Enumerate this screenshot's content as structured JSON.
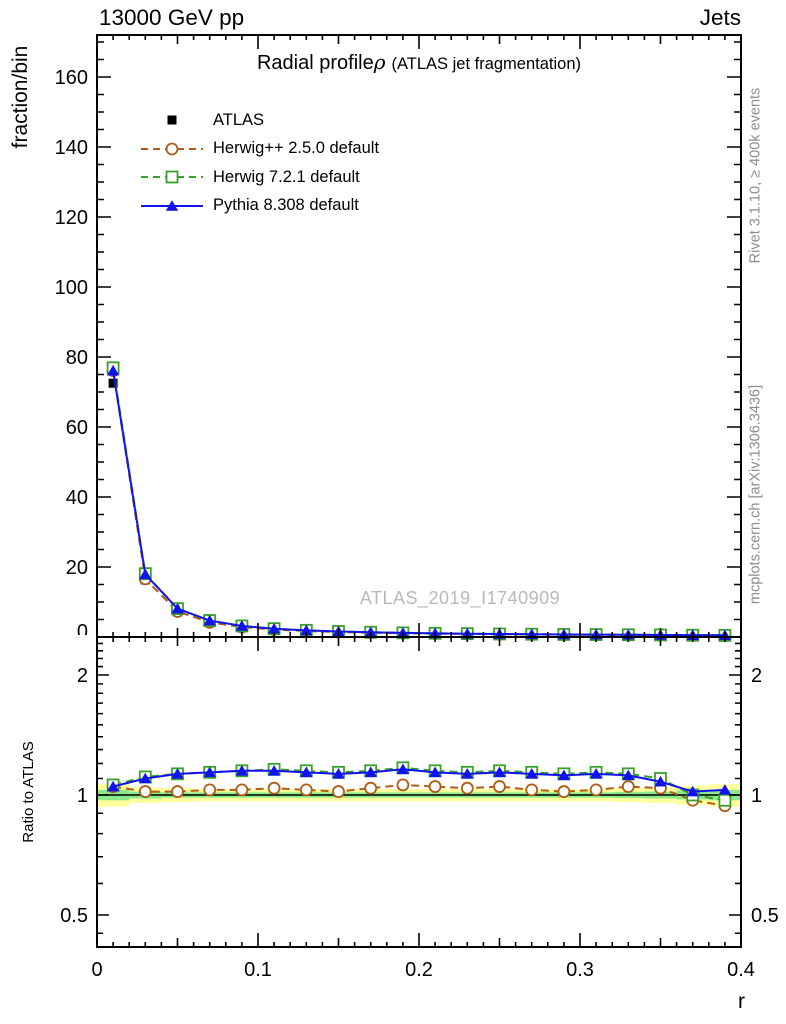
{
  "header": {
    "left": "13000 GeV pp",
    "right": "Jets"
  },
  "title": {
    "main": "Radial profile",
    "symbol": "ρ",
    "suffix": "(ATLAS jet fragmentation)"
  },
  "watermark": "ATLAS_2019_I1740909",
  "side_captions": {
    "rivet": "Rivet 3.1.10, ≥ 400k events",
    "mcplots": "mcplots.cern.ch [arXiv:1306.3436]"
  },
  "colors": {
    "band_yellow": "#ffff9e",
    "band_green": "#8be88b",
    "caption_gray": "#8c8c8c",
    "watermark_gray": "#b9b9b9"
  },
  "chart_data": {
    "type": "line",
    "title": "Radial profile ρ (ATLAS jet fragmentation)",
    "xlabel": "r",
    "xlim": [
      0,
      0.4
    ],
    "xticks": [
      0,
      0.1,
      0.2,
      0.3,
      0.4
    ],
    "x_tick_labels": [
      "0",
      "0.1",
      "0.2",
      "0.3",
      "0.4"
    ],
    "bin_width": 0.02,
    "x": [
      0.01,
      0.03,
      0.05,
      0.07,
      0.09,
      0.11,
      0.13,
      0.15,
      0.17,
      0.19,
      0.21,
      0.23,
      0.25,
      0.27,
      0.29,
      0.31,
      0.33,
      0.35,
      0.37,
      0.39
    ],
    "top_panel": {
      "ylabel": "fraction/bin",
      "yscale": "linear",
      "ylim": [
        0,
        172
      ],
      "yticks": [
        0,
        20,
        40,
        60,
        80,
        100,
        120,
        140,
        160
      ],
      "y_tick_labels": [
        "0",
        "20",
        "40",
        "60",
        "80",
        "100",
        "120",
        "140",
        "160"
      ]
    },
    "ratio_panel": {
      "ylabel": "Ratio to ATLAS",
      "yscale": "log",
      "ylim": [
        0.42,
        2.49
      ],
      "yticks": [
        0.5,
        1,
        2
      ],
      "y_tick_labels": [
        "0.5",
        "1",
        "2"
      ],
      "band": {
        "center": 1.0,
        "yellow_halfwidth": [
          0.065,
          0.045,
          0.04,
          0.035,
          0.035,
          0.035,
          0.035,
          0.035,
          0.035,
          0.035,
          0.035,
          0.035,
          0.035,
          0.035,
          0.035,
          0.035,
          0.04,
          0.045,
          0.055,
          0.065
        ],
        "green_halfwidth": [
          0.03,
          0.02,
          0.015,
          0.015,
          0.015,
          0.015,
          0.015,
          0.015,
          0.015,
          0.015,
          0.015,
          0.015,
          0.015,
          0.015,
          0.015,
          0.015,
          0.018,
          0.02,
          0.025,
          0.03
        ]
      }
    },
    "series": [
      {
        "name": "ATLAS",
        "color": "#000000",
        "marker": "filled-square",
        "line": "none",
        "values": [
          72.5,
          16.3,
          7.2,
          4.1,
          2.75,
          2.05,
          1.65,
          1.38,
          1.18,
          1.02,
          0.92,
          0.83,
          0.76,
          0.7,
          0.65,
          0.61,
          0.57,
          0.54,
          0.51,
          0.48
        ],
        "ratio": null
      },
      {
        "name": "Herwig++ 2.5.0 default",
        "color": "#b05c18",
        "marker": "open-circle",
        "line": "dashed",
        "values": [
          76.1,
          16.6,
          7.3,
          4.2,
          2.83,
          2.13,
          1.7,
          1.41,
          1.23,
          1.08,
          0.97,
          0.86,
          0.8,
          0.72,
          0.66,
          0.63,
          0.6,
          0.56,
          0.49,
          0.45
        ],
        "ratio": [
          1.05,
          1.02,
          1.02,
          1.03,
          1.03,
          1.04,
          1.03,
          1.02,
          1.04,
          1.06,
          1.05,
          1.04,
          1.05,
          1.03,
          1.02,
          1.03,
          1.05,
          1.04,
          0.97,
          0.94
        ]
      },
      {
        "name": "Herwig 7.2.1 default",
        "color": "#38a12c",
        "marker": "open-square",
        "line": "dashed",
        "values": [
          76.9,
          18.1,
          8.1,
          4.7,
          3.16,
          2.38,
          1.9,
          1.57,
          1.36,
          1.19,
          1.06,
          0.95,
          0.87,
          0.8,
          0.73,
          0.7,
          0.64,
          0.59,
          0.51,
          0.47
        ],
        "ratio": [
          1.06,
          1.11,
          1.13,
          1.14,
          1.15,
          1.16,
          1.15,
          1.14,
          1.15,
          1.17,
          1.15,
          1.14,
          1.15,
          1.14,
          1.13,
          1.14,
          1.13,
          1.1,
          1.0,
          0.97
        ]
      },
      {
        "name": "Pythia 8.308 default",
        "color": "#1212ee",
        "marker": "filled-triangle",
        "line": "solid",
        "values": [
          76.1,
          17.9,
          8.1,
          4.7,
          3.16,
          2.36,
          1.88,
          1.56,
          1.35,
          1.18,
          1.05,
          0.94,
          0.87,
          0.79,
          0.73,
          0.69,
          0.64,
          0.58,
          0.52,
          0.49
        ],
        "ratio": [
          1.05,
          1.1,
          1.13,
          1.14,
          1.15,
          1.15,
          1.14,
          1.13,
          1.14,
          1.16,
          1.14,
          1.13,
          1.14,
          1.13,
          1.12,
          1.13,
          1.12,
          1.08,
          1.02,
          1.03
        ]
      }
    ]
  }
}
